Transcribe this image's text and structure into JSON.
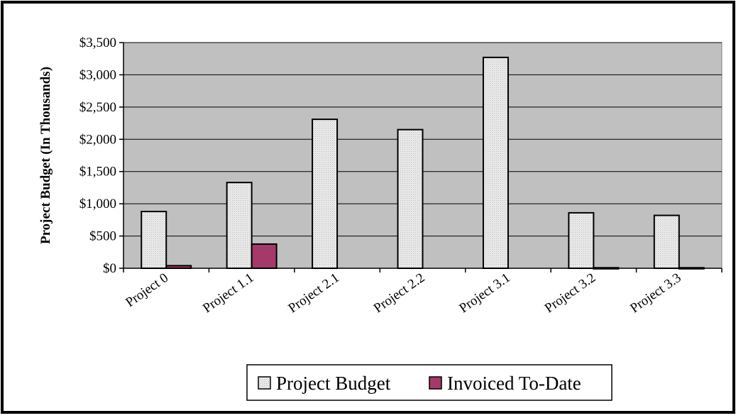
{
  "chart_data": {
    "type": "bar",
    "title": "",
    "xlabel": "",
    "ylabel": "Project Budget (In Thousands)",
    "ylim": [
      0,
      3500
    ],
    "ytick_values": [
      0,
      500,
      1000,
      1500,
      2000,
      2500,
      3000,
      3500
    ],
    "ytick_labels": [
      "$0",
      "$500",
      "$1,000",
      "$1,500",
      "$2,000",
      "$2,500",
      "$3,000",
      "$3,500"
    ],
    "categories": [
      "Project 0",
      "Project 1.1",
      "Project 2.1",
      "Project 2.2",
      "Project 3.1",
      "Project 3.2",
      "Project 3.3"
    ],
    "series": [
      {
        "name": "Project Budget",
        "values": [
          880,
          1330,
          2310,
          2150,
          3270,
          860,
          820
        ],
        "color": "#e8e8e8"
      },
      {
        "name": "Invoiced To-Date",
        "values": [
          40,
          375,
          0,
          0,
          0,
          8,
          8
        ],
        "color": "#a33a6a"
      }
    ],
    "grid": true,
    "plot_background": "#c0c0c0",
    "legend_position": "bottom"
  }
}
